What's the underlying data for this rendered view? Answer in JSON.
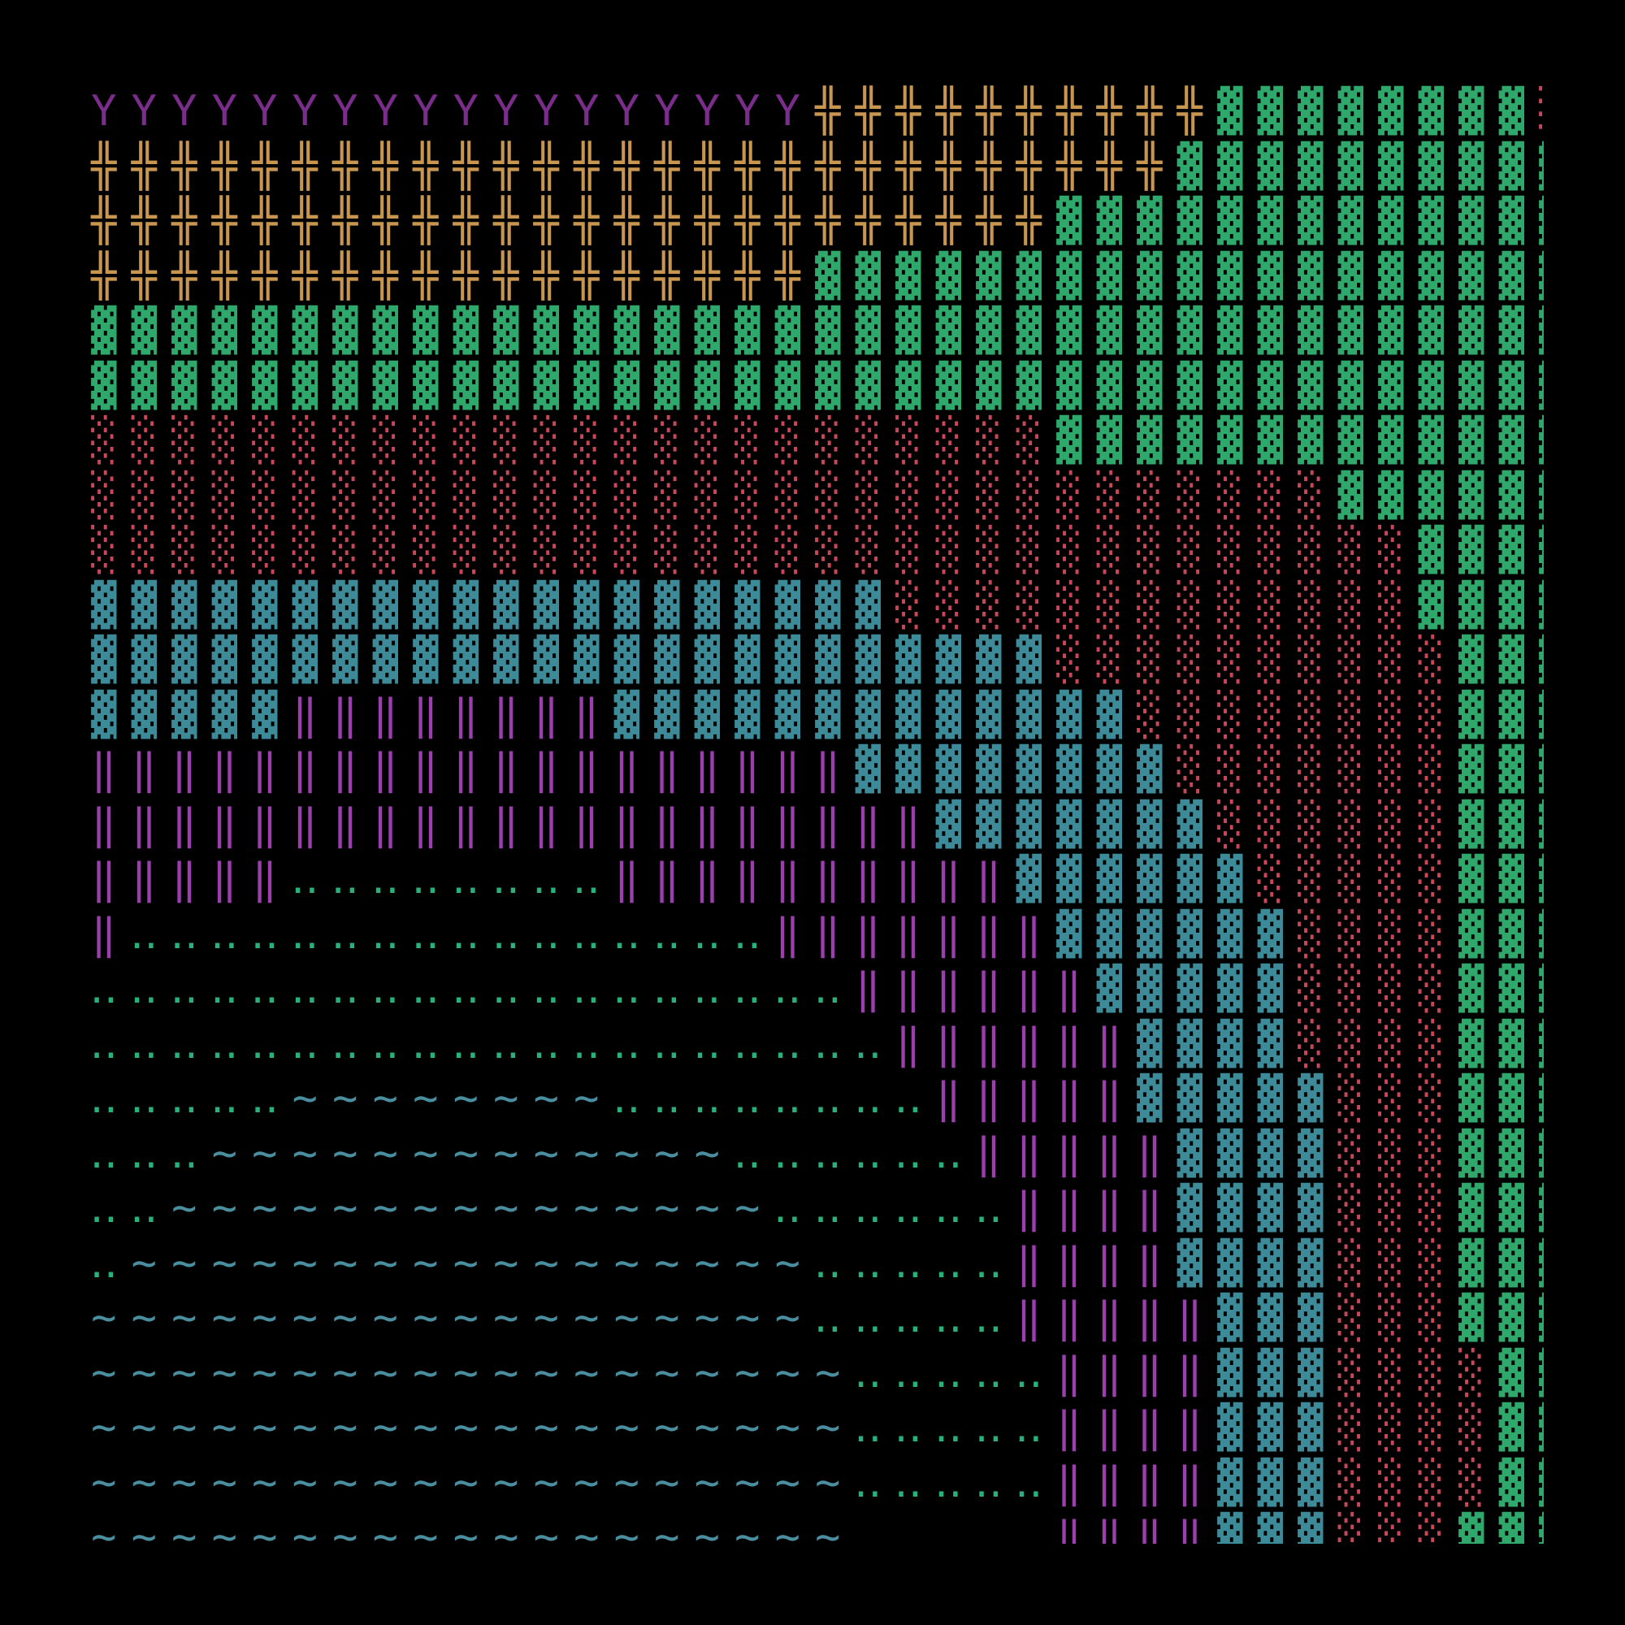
{
  "grid": {
    "background": "#000000",
    "rows": [
      [
        {
          "text": "YYYYYYYYYYYYYYYYYY",
          "color": "#7b2d8b"
        },
        {
          "text": "╬╬╬╬╬╬╬╬╬╬",
          "color": "#c8964f"
        },
        {
          "text": "▓▓▓▓▓▓▓▓",
          "color": "#2fa86b"
        },
        {
          "text": "░",
          "color": "#c8485a"
        }
      ],
      [
        {
          "text": "╬╬╬╬╬╬╬╬╬╬╬╬╬╬╬╬╬╬╬╬╬╬╬╬╬╬╬",
          "color": "#c8964f"
        },
        {
          "text": "▓▓▓▓▓▓▓▓▓▓",
          "color": "#2fa86b"
        }
      ],
      [
        {
          "text": "╬╬╬╬╬╬╬╬╬╬╬╬╬╬╬╬╬╬╬╬╬╬╬╬",
          "color": "#c8964f"
        },
        {
          "text": "▓▓▓▓▓▓▓▓▓▓▓▓▓",
          "color": "#2fa86b"
        }
      ],
      [
        {
          "text": "╬╬╬╬╬╬╬╬╬╬╬╬╬╬╬╬╬╬",
          "color": "#c8964f"
        },
        {
          "text": "▓▓▓▓▓▓▓▓▓▓▓▓▓▓▓▓▓▓▓",
          "color": "#2fa86b"
        }
      ],
      [
        {
          "text": "▓▓▓▓▓▓▓▓▓▓▓▓▓▓▓▓▓▓▓▓▓▓▓▓▓▓▓▓▓▓▓▓▓▓▓▓▓",
          "color": "#2fa86b"
        }
      ],
      [
        {
          "text": "▓▓▓▓▓▓▓▓▓▓▓▓▓▓▓▓▓▓▓▓▓▓▓▓▓▓▓▓▓▓▓▓▓▓▓▓▓",
          "color": "#2fa86b"
        }
      ],
      [
        {
          "text": "░░░░░░░░░░░░░░░░░░░░░░░░",
          "color": "#c8485a"
        },
        {
          "text": "▓▓▓▓▓▓▓▓▓▓▓▓▓",
          "color": "#2fa86b"
        }
      ],
      [
        {
          "text": "░░░░░░░░░░░░░░░░░░░░░░░░░░░░░░░",
          "color": "#c8485a"
        },
        {
          "text": "▓▓▓▓▓▓",
          "color": "#2fa86b"
        }
      ],
      [
        {
          "text": "░░░░░░░░░░░░░░░░░░░░░░░░░░░░░░░░░",
          "color": "#c8485a"
        },
        {
          "text": "▓▓▓▓",
          "color": "#2fa86b"
        }
      ],
      [
        {
          "text": "▓▓▓▓▓▓▓▓▓▓▓▓▓▓▓▓▓▓▓▓",
          "color": "#3d8a98"
        },
        {
          "text": "░░░░░░░░░░░░░",
          "color": "#c8485a"
        },
        {
          "text": "▓▓▓▓",
          "color": "#2fa86b"
        }
      ],
      [
        {
          "text": "▓▓▓▓▓▓▓▓▓▓▓▓▓▓▓▓▓▓▓▓▓▓▓▓",
          "color": "#3d8a98"
        },
        {
          "text": "░░░░░░░░░░",
          "color": "#c8485a"
        },
        {
          "text": "▓▓▓",
          "color": "#2fa86b"
        }
      ],
      [
        {
          "text": "▓▓▓▓▓",
          "color": "#3d8a98"
        },
        {
          "text": "‖‖‖‖‖‖‖‖",
          "color": "#9b3fae"
        },
        {
          "text": "▓▓▓▓▓▓▓▓▓▓▓▓▓",
          "color": "#3d8a98"
        },
        {
          "text": "░░░░░░░░",
          "color": "#c8485a"
        },
        {
          "text": "▓▓▓",
          "color": "#2fa86b"
        }
      ],
      [
        {
          "text": "‖‖‖‖‖‖‖‖‖‖‖‖‖‖‖‖‖‖‖",
          "color": "#9b3fae"
        },
        {
          "text": "▓▓▓▓▓▓▓▓",
          "color": "#3d8a98"
        },
        {
          "text": "░░░░░░░",
          "color": "#c8485a"
        },
        {
          "text": "▓▓▓",
          "color": "#2fa86b"
        }
      ],
      [
        {
          "text": "‖‖‖‖‖‖‖‖‖‖‖‖‖‖‖‖‖‖‖‖‖",
          "color": "#9b3fae"
        },
        {
          "text": "▓▓▓▓▓▓▓",
          "color": "#3d8a98"
        },
        {
          "text": "░░░░░░",
          "color": "#c8485a"
        },
        {
          "text": "▓▓▓",
          "color": "#2fa86b"
        }
      ],
      [
        {
          "text": "‖‖‖‖‖",
          "color": "#9b3fae"
        },
        {
          "text": "‥‥‥‥‥‥‥‥",
          "color": "#2ab07a"
        },
        {
          "text": "‖‖‖‖‖‖‖‖‖‖",
          "color": "#9b3fae"
        },
        {
          "text": "▓▓▓▓▓▓",
          "color": "#3d8a98"
        },
        {
          "text": "░░░░░",
          "color": "#c8485a"
        },
        {
          "text": "▓▓▓",
          "color": "#2fa86b"
        }
      ],
      [
        {
          "text": "‖",
          "color": "#9b3fae"
        },
        {
          "text": "‥‥‥‥‥‥‥‥‥‥‥‥‥‥‥‥",
          "color": "#2ab07a"
        },
        {
          "text": "‖‖‖‖‖‖‖",
          "color": "#9b3fae"
        },
        {
          "text": "▓▓▓▓▓▓",
          "color": "#3d8a98"
        },
        {
          "text": "░░░░",
          "color": "#c8485a"
        },
        {
          "text": "▓▓▓",
          "color": "#2fa86b"
        }
      ],
      [
        {
          "text": "‥‥‥‥‥‥‥‥‥‥‥‥‥‥‥‥‥‥‥",
          "color": "#2ab07a"
        },
        {
          "text": "‖‖‖‖‖‖",
          "color": "#9b3fae"
        },
        {
          "text": "▓▓▓▓▓",
          "color": "#3d8a98"
        },
        {
          "text": "░░░░",
          "color": "#c8485a"
        },
        {
          "text": "▓▓▓",
          "color": "#2fa86b"
        }
      ],
      [
        {
          "text": "‥‥‥‥‥‥‥‥‥‥‥‥‥‥‥‥‥‥‥‥",
          "color": "#2ab07a"
        },
        {
          "text": "‖‖‖‖‖‖",
          "color": "#9b3fae"
        },
        {
          "text": "▓▓▓▓",
          "color": "#3d8a98"
        },
        {
          "text": "░░░░",
          "color": "#c8485a"
        },
        {
          "text": "▓▓▓",
          "color": "#2fa86b"
        }
      ],
      [
        {
          "text": "‥‥‥‥‥",
          "color": "#2ab07a"
        },
        {
          "text": "~~~~~~~~",
          "color": "#4a8fa0"
        },
        {
          "text": "‥‥‥‥‥‥‥‥",
          "color": "#2ab07a"
        },
        {
          "text": "‖‖‖‖‖",
          "color": "#9b3fae"
        },
        {
          "text": "▓▓▓▓▓",
          "color": "#3d8a98"
        },
        {
          "text": "░░░",
          "color": "#c8485a"
        },
        {
          "text": "▓▓▓",
          "color": "#2fa86b"
        }
      ],
      [
        {
          "text": "‥‥‥",
          "color": "#2ab07a"
        },
        {
          "text": "~~~~~~~~~~~~~",
          "color": "#4a8fa0"
        },
        {
          "text": "‥‥‥‥‥‥",
          "color": "#2ab07a"
        },
        {
          "text": "‖‖‖‖‖",
          "color": "#9b3fae"
        },
        {
          "text": "▓▓▓▓",
          "color": "#3d8a98"
        },
        {
          "text": "░░░",
          "color": "#c8485a"
        },
        {
          "text": "▓▓▓",
          "color": "#2fa86b"
        }
      ],
      [
        {
          "text": "‥‥",
          "color": "#2ab07a"
        },
        {
          "text": "~~~~~~~~~~~~~~~",
          "color": "#4a8fa0"
        },
        {
          "text": "‥‥‥‥‥‥",
          "color": "#2ab07a"
        },
        {
          "text": "‖‖‖‖",
          "color": "#9b3fae"
        },
        {
          "text": "▓▓▓▓",
          "color": "#3d8a98"
        },
        {
          "text": "░░░",
          "color": "#c8485a"
        },
        {
          "text": "▓▓▓",
          "color": "#2fa86b"
        }
      ],
      [
        {
          "text": "‥",
          "color": "#2ab07a"
        },
        {
          "text": "~~~~~~~~~~~~~~~~~",
          "color": "#4a8fa0"
        },
        {
          "text": "‥‥‥‥‥",
          "color": "#2ab07a"
        },
        {
          "text": "‖‖‖‖",
          "color": "#9b3fae"
        },
        {
          "text": "▓▓▓▓",
          "color": "#3d8a98"
        },
        {
          "text": "░░░",
          "color": "#c8485a"
        },
        {
          "text": "▓▓▓",
          "color": "#2fa86b"
        }
      ],
      [
        {
          "text": "~~~~~~~~~~~~~~~~~~",
          "color": "#4a8fa0"
        },
        {
          "text": "‥‥‥‥‥",
          "color": "#2ab07a"
        },
        {
          "text": "‖‖‖‖‖",
          "color": "#9b3fae"
        },
        {
          "text": "▓▓▓",
          "color": "#3d8a98"
        },
        {
          "text": "░░░",
          "color": "#c8485a"
        },
        {
          "text": "▓▓▓",
          "color": "#2fa86b"
        }
      ],
      [
        {
          "text": "~~~~~~~~~~~~~~~~~~~",
          "color": "#4a8fa0"
        },
        {
          "text": "‥‥‥‥‥",
          "color": "#2ab07a"
        },
        {
          "text": "‖‖‖‖",
          "color": "#9b3fae"
        },
        {
          "text": "▓▓▓",
          "color": "#3d8a98"
        },
        {
          "text": "░░░░",
          "color": "#c8485a"
        },
        {
          "text": "▓▓",
          "color": "#2fa86b"
        }
      ],
      [
        {
          "text": "~~~~~~~~~~~~~~~~~~~",
          "color": "#4a8fa0"
        },
        {
          "text": "‥‥‥‥‥",
          "color": "#2ab07a"
        },
        {
          "text": "‖‖‖‖",
          "color": "#9b3fae"
        },
        {
          "text": "▓▓▓",
          "color": "#3d8a98"
        },
        {
          "text": "░░░░",
          "color": "#c8485a"
        },
        {
          "text": "▓▓",
          "color": "#2fa86b"
        }
      ],
      [
        {
          "text": "~~~~~~~~~~~~~~~~~~~",
          "color": "#4a8fa0"
        },
        {
          "text": "‥‥‥‥‥",
          "color": "#2ab07a"
        },
        {
          "text": "‖‖‖‖",
          "color": "#9b3fae"
        },
        {
          "text": "▓▓▓",
          "color": "#3d8a98"
        },
        {
          "text": "░░░░",
          "color": "#c8485a"
        },
        {
          "text": "▓▓",
          "color": "#2fa86b"
        }
      ],
      [
        {
          "text": "~~~~~~~~~~~~~~~~~~~",
          "color": "#4a8fa0"
        },
        {
          "text": "     "
        },
        {
          "text": "‖‖‖‖",
          "color": "#9b3fae"
        },
        {
          "text": "▓▓▓",
          "color": "#3d8a98"
        },
        {
          "text": "░░░",
          "color": "#c8485a"
        },
        {
          "text": "▓▓▓",
          "color": "#2fa86b"
        }
      ]
    ]
  }
}
